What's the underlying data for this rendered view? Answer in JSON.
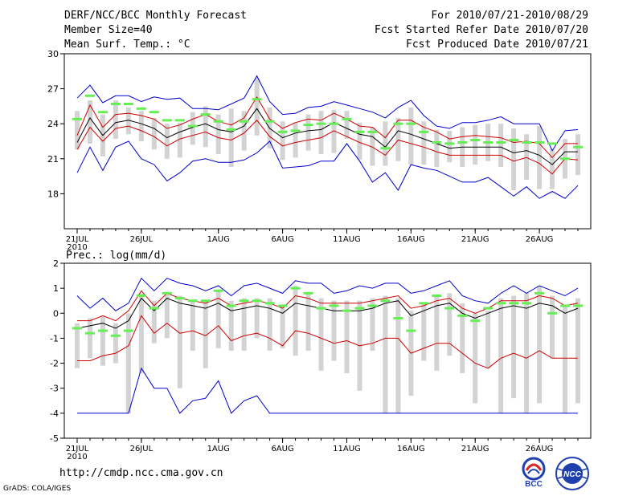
{
  "header": {
    "title": "DERF/NCC/BCC Monthly Forecast",
    "member_size": "Member Size=40",
    "variable": "Mean Surf. Temp.: °C",
    "period": "For 2010/07/21-2010/08/29",
    "started": "Fcst Started Refer Date 2010/07/20",
    "produced": "Fcst Produced Date 2010/07/21"
  },
  "footer": {
    "url": "http://cmdp.ncc.cma.gov.cn",
    "grads": "GrADS: COLA/IGES",
    "bcc_logo_text": "BCC",
    "ncc_logo_text": "NCC"
  },
  "colors": {
    "box": "#d3d3d3",
    "mean": "#000000",
    "sd": "#cc0000",
    "range": "#0000cc",
    "obs": "#66ee55"
  },
  "chart_data": [
    {
      "type": "line",
      "title": "Mean Surf. Temp.: °C",
      "ylim": [
        15,
        30
      ],
      "yticks": [
        18,
        21,
        24,
        27,
        30
      ],
      "day_count": 40,
      "xticks": [
        {
          "day": 0,
          "label": "21JUL",
          "sub": "2010"
        },
        {
          "day": 5,
          "label": "26JUL"
        },
        {
          "day": 11,
          "label": "1AUG"
        },
        {
          "day": 16,
          "label": "6AUG"
        },
        {
          "day": 21,
          "label": "11AUG"
        },
        {
          "day": 26,
          "label": "16AUG"
        },
        {
          "day": 31,
          "label": "21AUG"
        },
        {
          "day": 36,
          "label": "26AUG"
        }
      ],
      "series": [
        {
          "name": "max",
          "values": [
            19.8,
            22.0,
            20.0,
            22.0,
            22.5,
            21.0,
            20.5,
            19.1,
            19.8,
            20.8,
            21.0,
            20.7,
            20.7,
            20.9,
            21.5,
            22.5,
            20.2,
            20.3,
            20.4,
            20.8,
            20.8,
            22.3,
            20.8,
            19.0,
            19.8,
            18.3,
            20.5,
            20.2,
            20.0,
            19.5,
            19.0,
            19.0,
            19.4,
            18.6,
            17.8,
            18.6,
            17.6,
            18.2,
            17.6,
            18.7
          ]
        },
        {
          "name": "max_upper",
          "values": [
            26.2,
            27.3,
            25.8,
            26.4,
            26.4,
            25.9,
            26.3,
            26.1,
            26.2,
            25.3,
            25.3,
            25.2,
            25.7,
            26.2,
            28.1,
            25.9,
            24.8,
            24.9,
            25.4,
            25.5,
            25.9,
            25.6,
            25.3,
            25.0,
            24.5,
            25.4,
            26.0,
            24.7,
            23.8,
            23.6,
            24.1,
            24.1,
            24.3,
            24.6,
            24.0,
            24.0,
            24.0,
            21.7,
            23.4,
            23.5
          ]
        },
        {
          "name": "sd_upper",
          "values": [
            23.0,
            25.6,
            23.7,
            24.8,
            24.9,
            24.7,
            24.4,
            23.6,
            23.9,
            24.4,
            24.8,
            24.2,
            23.9,
            24.5,
            26.3,
            24.4,
            23.6,
            24.1,
            24.4,
            24.3,
            24.9,
            24.4,
            23.8,
            23.7,
            22.8,
            24.3,
            24.3,
            23.7,
            23.3,
            22.7,
            22.9,
            23.0,
            22.9,
            22.8,
            22.4,
            22.5,
            22.3,
            21.1,
            22.3,
            22.3
          ]
        },
        {
          "name": "mean",
          "values": [
            22.4,
            24.5,
            23.0,
            24.1,
            24.3,
            24.0,
            23.6,
            22.8,
            23.3,
            23.7,
            24.0,
            23.5,
            23.3,
            23.8,
            25.3,
            23.6,
            22.8,
            23.2,
            23.4,
            23.5,
            24.1,
            23.6,
            23.1,
            22.9,
            22.0,
            23.4,
            23.1,
            22.7,
            22.3,
            21.9,
            22.0,
            22.0,
            22.0,
            22.0,
            21.5,
            21.7,
            21.3,
            20.5,
            21.6,
            21.6
          ]
        },
        {
          "name": "sd_lower",
          "values": [
            21.8,
            23.7,
            22.5,
            23.6,
            23.8,
            23.4,
            22.9,
            22.1,
            22.7,
            23.0,
            23.3,
            22.8,
            22.6,
            23.2,
            24.3,
            22.9,
            22.1,
            22.4,
            22.6,
            22.8,
            23.4,
            22.9,
            22.4,
            22.0,
            21.3,
            22.6,
            22.3,
            22.0,
            21.6,
            21.3,
            21.3,
            21.3,
            21.3,
            21.3,
            20.8,
            21.1,
            20.6,
            19.7,
            21.0,
            20.9
          ]
        },
        {
          "name": "box_low",
          "values": [
            21.8,
            22.3,
            21.2,
            22.7,
            23.1,
            22.5,
            21.8,
            21.0,
            21.1,
            22.2,
            22.0,
            21.4,
            20.3,
            21.7,
            23.0,
            21.9,
            20.9,
            21.1,
            21.7,
            21.4,
            21.5,
            22.7,
            20.9,
            20.4,
            20.4,
            20.8,
            20.5,
            20.5,
            20.3,
            20.7,
            20.3,
            20.5,
            20.8,
            20.3,
            18.3,
            19.2,
            18.4,
            18.4,
            19.3,
            19.6
          ]
        },
        {
          "name": "box_high",
          "values": [
            25.1,
            26.0,
            24.8,
            26.0,
            25.4,
            25.1,
            24.5,
            24.0,
            24.1,
            25.0,
            25.5,
            24.8,
            25.3,
            25.1,
            27.9,
            25.4,
            24.2,
            24.1,
            24.8,
            25.1,
            25.2,
            25.1,
            24.1,
            23.7,
            24.2,
            24.5,
            25.4,
            24.2,
            23.5,
            23.4,
            23.7,
            23.9,
            24.0,
            24.0,
            23.6,
            23.1,
            23.8,
            21.8,
            22.7,
            23.1
          ]
        },
        {
          "name": "observed",
          "values": [
            24.4,
            26.4,
            25.0,
            25.7,
            25.7,
            25.3,
            25.0,
            24.3,
            24.3,
            23.8,
            24.8,
            24.2,
            23.5,
            24.2,
            26.1,
            24.2,
            23.3,
            23.4,
            23.9,
            24.0,
            24.0,
            24.4,
            23.3,
            23.3,
            21.9,
            24.0,
            24.0,
            23.3,
            22.4,
            22.3,
            22.4,
            22.6,
            22.4,
            22.4,
            22.6,
            22.4,
            22.4,
            22.3,
            21.0,
            22.0
          ]
        }
      ]
    },
    {
      "type": "line",
      "title": "Prec.: log(mm/d)",
      "ylim": [
        -5,
        2
      ],
      "yticks": [
        -5,
        -4,
        -3,
        -2,
        -1,
        0,
        1,
        2
      ],
      "day_count": 40,
      "xticks": [
        {
          "day": 0,
          "label": "21JUL",
          "sub": "2010"
        },
        {
          "day": 5,
          "label": "26JUL"
        },
        {
          "day": 11,
          "label": "1AUG"
        },
        {
          "day": 16,
          "label": "6AUG"
        },
        {
          "day": 21,
          "label": "11AUG"
        },
        {
          "day": 26,
          "label": "16AUG"
        },
        {
          "day": 31,
          "label": "21AUG"
        },
        {
          "day": 36,
          "label": "26AUG"
        }
      ],
      "series": [
        {
          "name": "max",
          "values": [
            -4,
            -4,
            -4,
            -4,
            -4,
            -2.2,
            -3.0,
            -3.0,
            -4.0,
            -3.5,
            -3.4,
            -2.7,
            -4.0,
            -3.5,
            -3.3,
            -4,
            -4,
            -4,
            -4,
            -4,
            -4,
            -4,
            -4,
            -4,
            -4,
            -4,
            -4,
            -4,
            -4,
            -4,
            -4,
            -4,
            -4,
            -4,
            -4,
            -4,
            -4,
            -4,
            -4,
            -4
          ]
        },
        {
          "name": "max_upper",
          "values": [
            0.7,
            0.2,
            0.6,
            0.1,
            0.4,
            1.4,
            0.9,
            1.4,
            1.2,
            1.1,
            0.9,
            1.1,
            0.7,
            1.1,
            1.2,
            1.0,
            0.8,
            1.3,
            1.2,
            1.2,
            0.8,
            0.9,
            1.1,
            1.0,
            1.2,
            1.2,
            0.8,
            0.9,
            1.1,
            1.3,
            0.7,
            0.5,
            0.4,
            0.8,
            1.1,
            0.8,
            1.1,
            0.9,
            0.7,
            1.0
          ]
        },
        {
          "name": "sd_upper",
          "values": [
            -0.3,
            -0.3,
            -0.1,
            -0.3,
            0.1,
            0.9,
            0.3,
            0.8,
            0.6,
            0.5,
            0.4,
            0.6,
            0.3,
            0.4,
            0.5,
            0.4,
            0.2,
            0.7,
            0.6,
            0.4,
            0.4,
            0.4,
            0.4,
            0.5,
            0.6,
            0.7,
            0.2,
            0.3,
            0.5,
            0.6,
            0.2,
            0.0,
            0.2,
            0.5,
            0.5,
            0.5,
            0.7,
            0.6,
            0.3,
            0.4
          ]
        },
        {
          "name": "mean",
          "values": [
            -0.6,
            -0.5,
            -0.4,
            -0.6,
            -0.3,
            0.6,
            0.1,
            0.6,
            0.4,
            0.3,
            0.2,
            0.4,
            0.1,
            0.2,
            0.3,
            0.2,
            0.0,
            0.4,
            0.3,
            0.2,
            0.1,
            0.1,
            0.1,
            0.2,
            0.4,
            0.5,
            -0.1,
            0.1,
            0.3,
            0.4,
            0.0,
            -0.2,
            0.0,
            0.2,
            0.3,
            0.2,
            0.4,
            0.3,
            0.0,
            0.2
          ]
        },
        {
          "name": "sd_lower",
          "values": [
            -1.9,
            -1.9,
            -1.7,
            -1.6,
            -1.3,
            -0.1,
            -0.8,
            -0.4,
            -0.8,
            -0.7,
            -0.9,
            -0.5,
            -1.1,
            -0.9,
            -0.8,
            -1.0,
            -1.3,
            -0.7,
            -0.8,
            -1.0,
            -1.2,
            -1.1,
            -1.3,
            -1.2,
            -1.0,
            -1.0,
            -1.6,
            -1.4,
            -1.2,
            -1.2,
            -1.6,
            -2.0,
            -2.2,
            -1.8,
            -1.6,
            -1.8,
            -1.5,
            -1.8,
            -1.8,
            -1.8
          ]
        },
        {
          "name": "box_low",
          "values": [
            -2.2,
            -1.8,
            -2.1,
            -2.0,
            -4.0,
            -2.4,
            -1.2,
            -1.0,
            -3.0,
            -1.5,
            -2.2,
            -1.4,
            -1.5,
            -1.5,
            -1.0,
            -1.5,
            -1.4,
            -1.7,
            -1.5,
            -2.3,
            -1.9,
            -2.4,
            -3.1,
            -1.5,
            -4.0,
            -4.0,
            -3.3,
            -1.9,
            -2.3,
            -1.7,
            -2.4,
            -3.6,
            -2.2,
            -4.0,
            -3.4,
            -4.0,
            -3.6,
            -1.8,
            -4.0,
            -3.6
          ]
        },
        {
          "name": "box_high",
          "values": [
            -0.4,
            -0.2,
            -0.1,
            -0.4,
            0.0,
            0.8,
            0.5,
            0.8,
            0.7,
            0.5,
            0.5,
            0.9,
            0.5,
            0.6,
            0.6,
            0.6,
            0.3,
            1.1,
            0.8,
            0.6,
            0.5,
            0.5,
            0.5,
            0.6,
            0.7,
            0.6,
            0.1,
            0.4,
            0.7,
            0.8,
            0.4,
            0.0,
            0.1,
            0.6,
            0.7,
            0.8,
            1.1,
            0.7,
            0.3,
            0.6
          ]
        },
        {
          "name": "observed",
          "values": [
            -0.6,
            -0.8,
            -0.7,
            -0.9,
            -0.7,
            0.7,
            0.2,
            0.8,
            0.6,
            0.5,
            0.5,
            0.9,
            0.3,
            0.5,
            0.5,
            0.4,
            0.3,
            1.0,
            0.8,
            0.2,
            0.3,
            0.1,
            0.2,
            0.3,
            0.5,
            -0.2,
            -0.7,
            0.4,
            0.7,
            0.2,
            -0.1,
            -0.3,
            0.2,
            0.4,
            0.4,
            0.4,
            0.8,
            0.0,
            0.3,
            0.3
          ]
        }
      ]
    }
  ]
}
